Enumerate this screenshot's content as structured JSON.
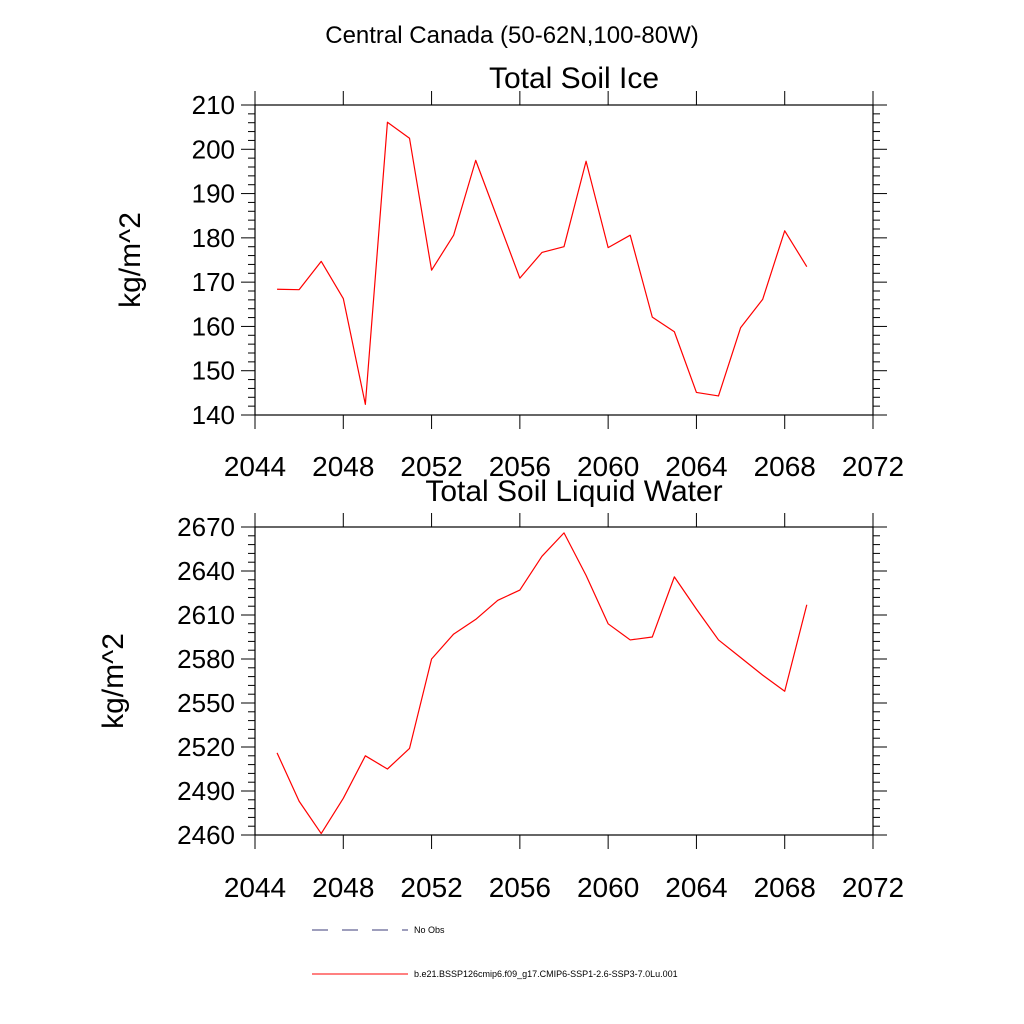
{
  "page_title": "Central Canada (50-62N,100-80W)",
  "chart_data": [
    {
      "type": "line",
      "title": "Total Soil Ice",
      "ylabel": "kg/m^2",
      "xlabel": "",
      "xlim": [
        2044,
        2072
      ],
      "ylim": [
        140,
        210
      ],
      "xticks": [
        2044,
        2048,
        2052,
        2056,
        2060,
        2064,
        2068,
        2072
      ],
      "yticks": [
        140,
        150,
        160,
        170,
        180,
        190,
        200,
        210
      ],
      "grid": false,
      "series": [
        {
          "name": "b.e21.BSSP126cmip6.f09_g17.CMIP6-SSP1-2.6-SSP3-7.0Lu.001",
          "color": "#ff0000",
          "x": [
            2045,
            2046,
            2047,
            2048,
            2049,
            2050,
            2051,
            2052,
            2053,
            2054,
            2055,
            2056,
            2057,
            2058,
            2059,
            2060,
            2061,
            2062,
            2063,
            2064,
            2065,
            2066,
            2067,
            2068,
            2069
          ],
          "y": [
            168.4,
            168.3,
            174.7,
            166.3,
            142.4,
            206.1,
            202.5,
            172.7,
            180.6,
            197.5,
            184.2,
            170.9,
            176.7,
            178.0,
            197.3,
            177.8,
            180.6,
            162.1,
            158.8,
            145.1,
            144.3,
            159.7,
            166.1,
            181.6,
            173.5
          ]
        }
      ]
    },
    {
      "type": "line",
      "title": "Total Soil Liquid Water",
      "ylabel": "kg/m^2",
      "xlabel": "",
      "xlim": [
        2044,
        2072
      ],
      "ylim": [
        2460,
        2670
      ],
      "xticks": [
        2044,
        2048,
        2052,
        2056,
        2060,
        2064,
        2068,
        2072
      ],
      "yticks": [
        2460,
        2490,
        2520,
        2550,
        2580,
        2610,
        2640,
        2670
      ],
      "grid": false,
      "series": [
        {
          "name": "b.e21.BSSP126cmip6.f09_g17.CMIP6-SSP1-2.6-SSP3-7.0Lu.001",
          "color": "#ff0000",
          "x": [
            2045,
            2046,
            2047,
            2048,
            2049,
            2050,
            2051,
            2052,
            2053,
            2054,
            2055,
            2056,
            2057,
            2058,
            2059,
            2060,
            2061,
            2062,
            2063,
            2064,
            2065,
            2066,
            2067,
            2068,
            2069
          ],
          "y": [
            2516,
            2483,
            2461,
            2485,
            2514,
            2505,
            2519,
            2580,
            2597,
            2607,
            2620,
            2627,
            2650,
            2666,
            2637,
            2604,
            2593,
            2595,
            2636,
            2614,
            2593,
            2581,
            2569,
            2558,
            2617
          ]
        }
      ]
    }
  ],
  "legend": {
    "placement": "bottom-left",
    "items": [
      {
        "label": "No Obs",
        "color": "#3d3d7a",
        "style": "dashed"
      },
      {
        "label": "b.e21.BSSP126cmip6.f09_g17.CMIP6-SSP1-2.6-SSP3-7.0Lu.001",
        "color": "#ff0000",
        "style": "solid"
      }
    ]
  }
}
